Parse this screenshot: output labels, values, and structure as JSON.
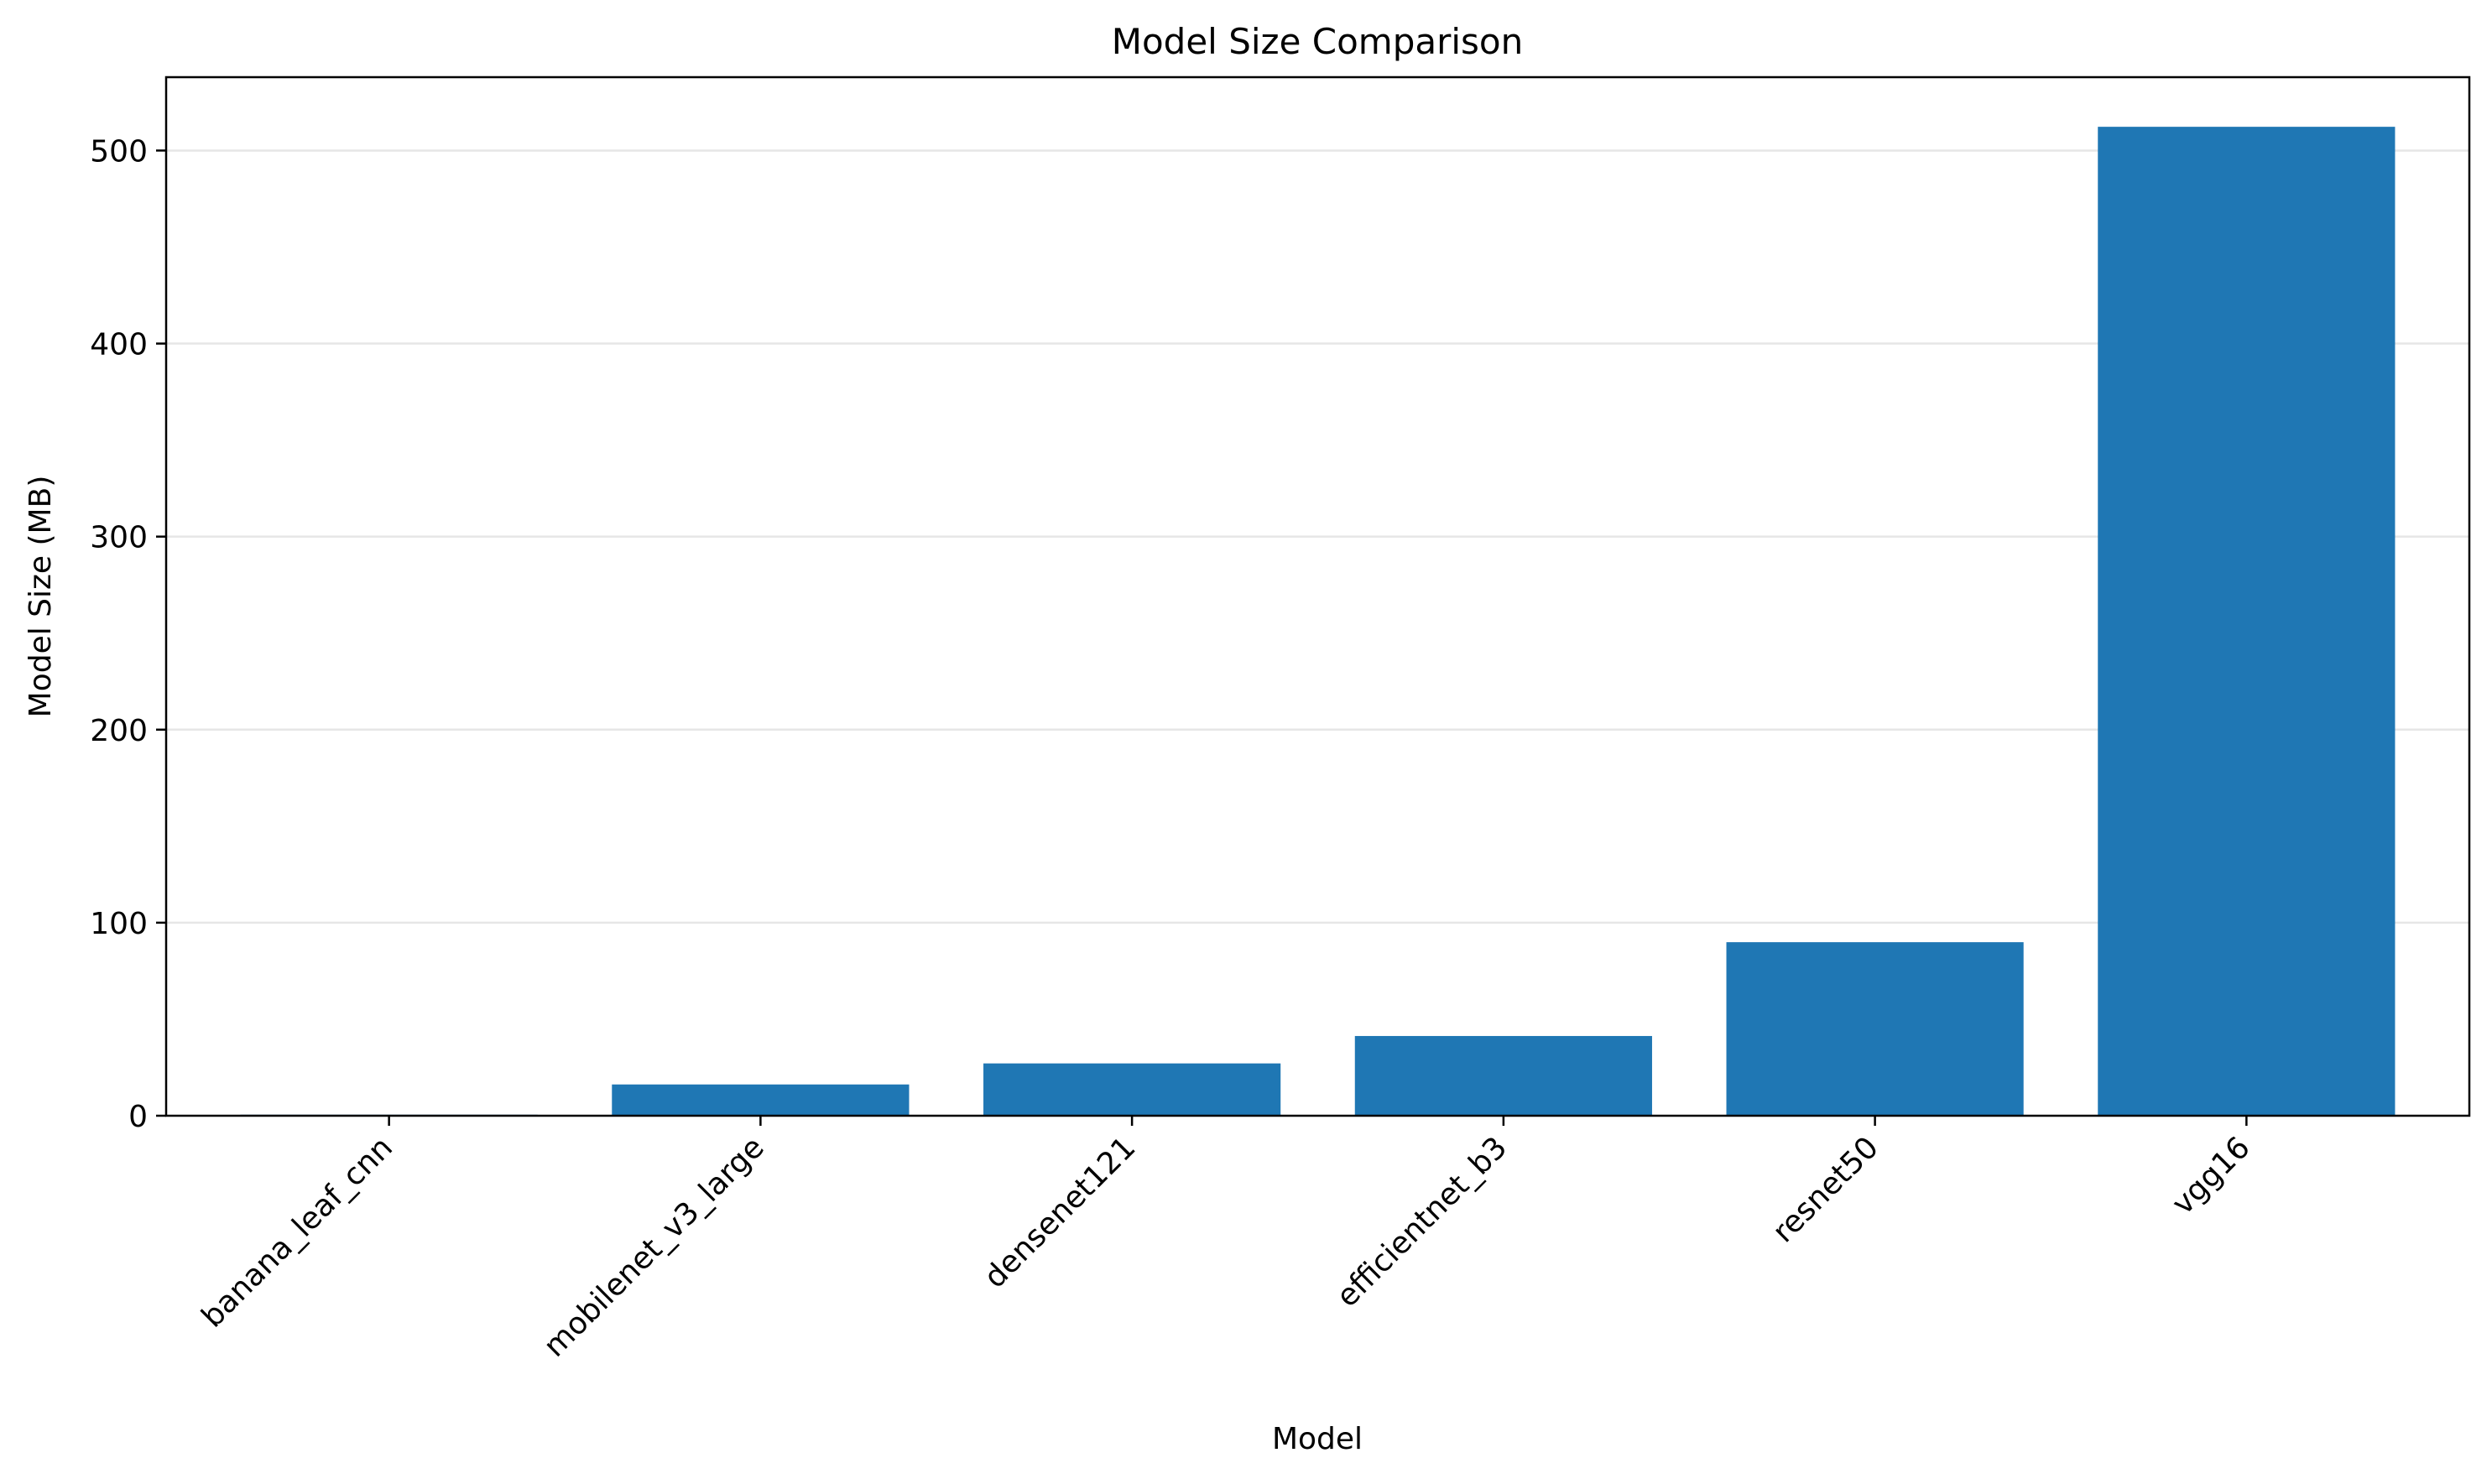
{
  "chart_data": {
    "type": "bar",
    "title": "Model Size Comparison",
    "xlabel": "Model",
    "ylabel": "Model Size (MB)",
    "categories": [
      "banana_leaf_cnn",
      "mobilenet_v3_large",
      "densenet121",
      "efficientnet_b3",
      "resnet50",
      "vgg16"
    ],
    "values": [
      0.5,
      16.2,
      27.1,
      41.3,
      89.9,
      512.3
    ],
    "ylim": [
      0,
      538
    ],
    "yticks": [
      0,
      100,
      200,
      300,
      400,
      500
    ],
    "grid": "y-axis horizontal lines",
    "legend": "none",
    "bar_color": "#1f77b4",
    "grid_color": "#e6e6e6"
  }
}
